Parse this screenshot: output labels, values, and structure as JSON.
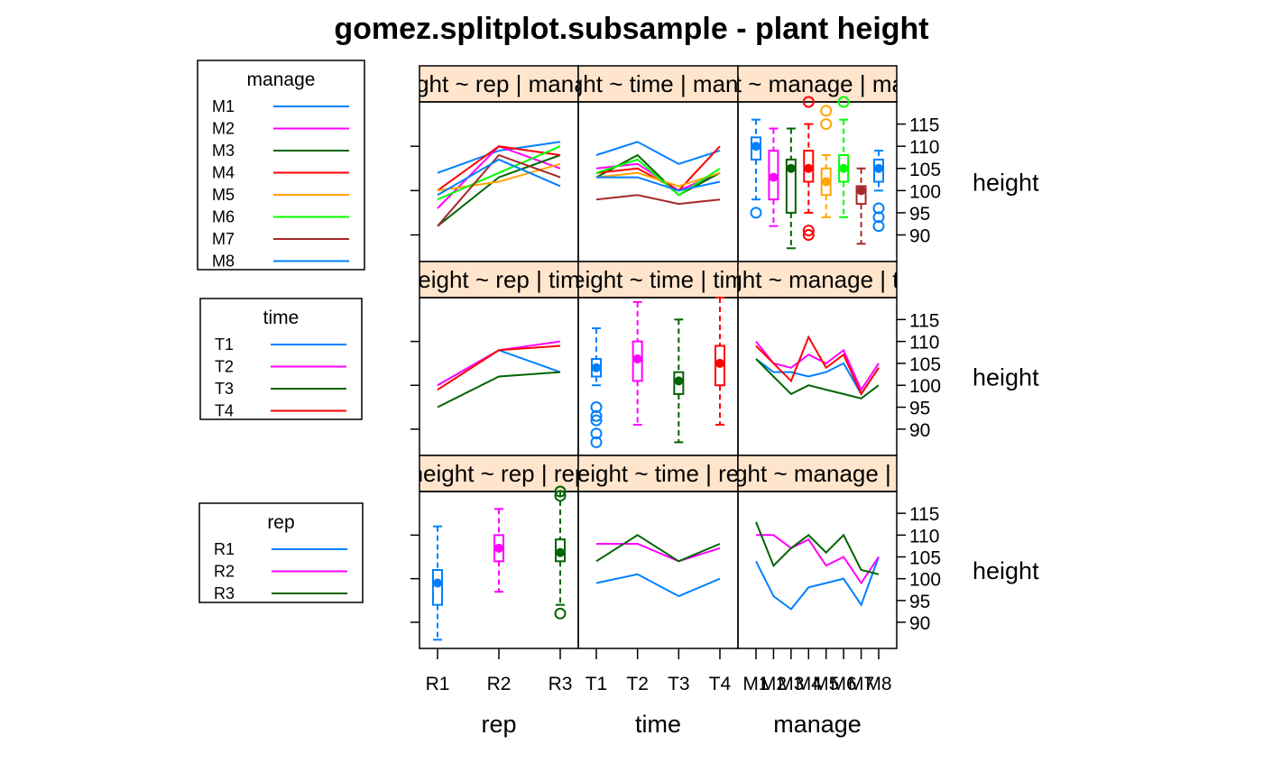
{
  "chart_data": {
    "type": "scatterplot-matrix",
    "title": "gomez.splitplot.subsample - plant height",
    "ylabel": "height",
    "yticks": [
      90,
      95,
      100,
      105,
      110,
      115
    ],
    "ylim": [
      84,
      120
    ],
    "columns": [
      {
        "name": "rep",
        "xlabel": "rep",
        "levels": [
          "R1",
          "R2",
          "R3"
        ]
      },
      {
        "name": "time",
        "xlabel": "time",
        "levels": [
          "T1",
          "T2",
          "T3",
          "T4"
        ]
      },
      {
        "name": "manage",
        "xlabel": "manage",
        "levels": [
          "M1",
          "M2",
          "M3",
          "M4",
          "M5",
          "M6",
          "M7",
          "M8"
        ]
      }
    ],
    "strips": [
      [
        "height ~ rep | manage",
        "height ~ time | manage",
        "height ~ manage | manage"
      ],
      [
        "height ~ rep | time",
        "height ~ time | time",
        "height ~ manage | time"
      ],
      [
        "height ~ rep | rep",
        "height ~ time | rep",
        "height ~ manage | rep"
      ]
    ],
    "groupings": [
      {
        "name": "manage",
        "levels": [
          "M1",
          "M2",
          "M3",
          "M4",
          "M5",
          "M6",
          "M7",
          "M8"
        ],
        "colors": [
          "#0080ff",
          "#ff00ff",
          "#006400",
          "#ff0000",
          "#ffa500",
          "#00ff00",
          "#a52a2a",
          "#0080ff"
        ]
      },
      {
        "name": "time",
        "levels": [
          "T1",
          "T2",
          "T3",
          "T4"
        ],
        "colors": [
          "#0080ff",
          "#ff00ff",
          "#006400",
          "#ff0000"
        ]
      },
      {
        "name": "rep",
        "levels": [
          "R1",
          "R2",
          "R3"
        ],
        "colors": [
          "#0080ff",
          "#ff00ff",
          "#006400"
        ]
      }
    ],
    "panels": [
      [
        {
          "kind": "interaction",
          "series": [
            [
              104,
              109,
              111
            ],
            [
              96,
              110,
              105
            ],
            [
              92,
              103,
              108
            ],
            [
              100,
              110,
              108
            ],
            [
              100,
              102,
              106
            ],
            [
              98,
              104,
              110
            ],
            [
              92,
              108,
              103
            ],
            [
              99,
              107,
              101
            ]
          ]
        },
        {
          "kind": "interaction",
          "series": [
            [
              108,
              111,
              106,
              109
            ],
            [
              105,
              106,
              100,
              104
            ],
            [
              103,
              108,
              99,
              104
            ],
            [
              104,
              105,
              100,
              110
            ],
            [
              103,
              104,
              101,
              104
            ],
            [
              104,
              107,
              99,
              105
            ],
            [
              98,
              99,
              97,
              98
            ],
            [
              103,
              103,
              100,
              102
            ]
          ]
        },
        {
          "kind": "boxplot",
          "boxes": [
            {
              "lo": 98,
              "q1": 107,
              "med": 110,
              "q3": 112,
              "hi": 116,
              "out": [
                95
              ]
            },
            {
              "lo": 92,
              "q1": 98,
              "med": 103,
              "q3": 109,
              "hi": 114,
              "out": []
            },
            {
              "lo": 87,
              "q1": 95,
              "med": 105,
              "q3": 107,
              "hi": 114,
              "out": []
            },
            {
              "lo": 95,
              "q1": 102,
              "med": 105,
              "q3": 109,
              "hi": 115,
              "out": [
                120,
                90,
                91
              ]
            },
            {
              "lo": 94,
              "q1": 99,
              "med": 102,
              "q3": 105,
              "hi": 108,
              "out": [
                118,
                115
              ]
            },
            {
              "lo": 94,
              "q1": 102,
              "med": 105,
              "q3": 108,
              "hi": 116,
              "out": [
                120
              ]
            },
            {
              "lo": 88,
              "q1": 97,
              "med": 100,
              "q3": 101,
              "hi": 105,
              "out": []
            },
            {
              "lo": 100,
              "q1": 102,
              "med": 105,
              "q3": 107,
              "hi": 109,
              "out": [
                96,
                94,
                92
              ]
            }
          ]
        }
      ],
      [
        {
          "kind": "interaction",
          "series": [
            [
              100,
              108,
              103
            ],
            [
              100,
              108,
              110
            ],
            [
              95,
              102,
              103
            ],
            [
              99,
              108,
              109
            ]
          ]
        },
        {
          "kind": "boxplot",
          "boxes": [
            {
              "lo": 100,
              "q1": 102,
              "med": 104,
              "q3": 106,
              "hi": 113,
              "out": [
                95,
                93,
                92,
                89,
                87
              ]
            },
            {
              "lo": 91,
              "q1": 101,
              "med": 106,
              "q3": 110,
              "hi": 119,
              "out": []
            },
            {
              "lo": 87,
              "q1": 98,
              "med": 101,
              "q3": 103,
              "hi": 115,
              "out": []
            },
            {
              "lo": 91,
              "q1": 100,
              "med": 105,
              "q3": 109,
              "hi": 120,
              "out": []
            }
          ]
        },
        {
          "kind": "interaction",
          "series": [
            [
              106,
              103,
              103,
              102,
              103,
              105,
              98,
              104
            ],
            [
              110,
              105,
              104,
              107,
              105,
              108,
              99,
              105
            ],
            [
              106,
              102,
              98,
              100,
              99,
              98,
              97,
              100
            ],
            [
              109,
              105,
              101,
              111,
              104,
              107,
              98,
              104
            ]
          ]
        }
      ],
      [
        {
          "kind": "boxplot",
          "boxes": [
            {
              "lo": 86,
              "q1": 94,
              "med": 99,
              "q3": 102,
              "hi": 112,
              "out": []
            },
            {
              "lo": 97,
              "q1": 104,
              "med": 107,
              "q3": 110,
              "hi": 116,
              "out": []
            },
            {
              "lo": 94,
              "q1": 104,
              "med": 106,
              "q3": 109,
              "hi": 120,
              "out": [
                120,
                119,
                92
              ]
            }
          ]
        },
        {
          "kind": "interaction",
          "series": [
            [
              99,
              101,
              96,
              100
            ],
            [
              108,
              108,
              104,
              107
            ],
            [
              104,
              110,
              104,
              108
            ]
          ]
        },
        {
          "kind": "interaction",
          "series": [
            [
              104,
              96,
              93,
              98,
              99,
              100,
              94,
              105
            ],
            [
              110,
              110,
              107,
              109,
              103,
              105,
              99,
              105
            ],
            [
              113,
              103,
              107,
              110,
              106,
              110,
              102,
              101
            ]
          ]
        }
      ]
    ]
  }
}
